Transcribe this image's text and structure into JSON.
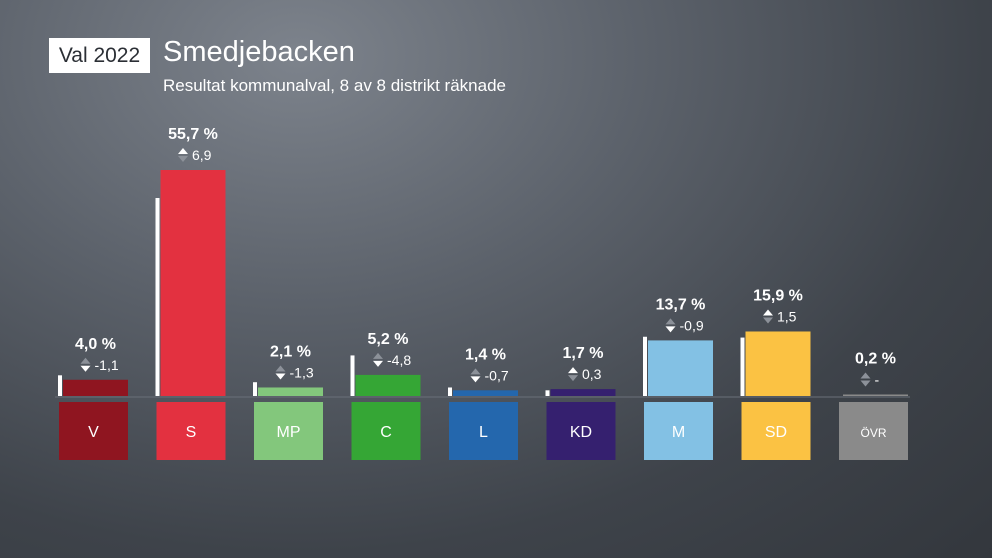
{
  "header": {
    "badge": "Val 2022",
    "title": "Smedjebacken",
    "subtitle": "Resultat kommunalval, 8 av 8 distrikt räknade"
  },
  "chart_data": {
    "type": "bar",
    "categories": [
      "V",
      "S",
      "MP",
      "C",
      "L",
      "KD",
      "M",
      "SD",
      "ÖVR"
    ],
    "values": [
      4.0,
      55.7,
      2.1,
      5.2,
      1.4,
      1.7,
      13.7,
      15.9,
      0.2
    ],
    "previous_values": [
      5.1,
      48.8,
      3.4,
      10.0,
      2.1,
      1.4,
      14.6,
      14.4,
      null
    ],
    "value_labels": [
      "4,0 %",
      "55,7 %",
      "2,1 %",
      "5,2 %",
      "1,4 %",
      "1,7 %",
      "13,7 %",
      "15,9 %",
      "0,2 %"
    ],
    "change_labels": [
      "-1,1",
      "6,9",
      "-1,3",
      "-4,8",
      "-0,7",
      "0,3",
      "-0,9",
      "1,5",
      "-"
    ],
    "change_direction": [
      "down",
      "up",
      "down",
      "down",
      "down",
      "up",
      "down",
      "up",
      "none"
    ],
    "colors": [
      "#8f1520",
      "#e33140",
      "#83c77c",
      "#35a635",
      "#2467ad",
      "#35206f",
      "#83c1e4",
      "#fbc243",
      "#8a8a8a"
    ],
    "ylim": [
      0,
      60
    ],
    "grid": false,
    "legend": "none"
  }
}
